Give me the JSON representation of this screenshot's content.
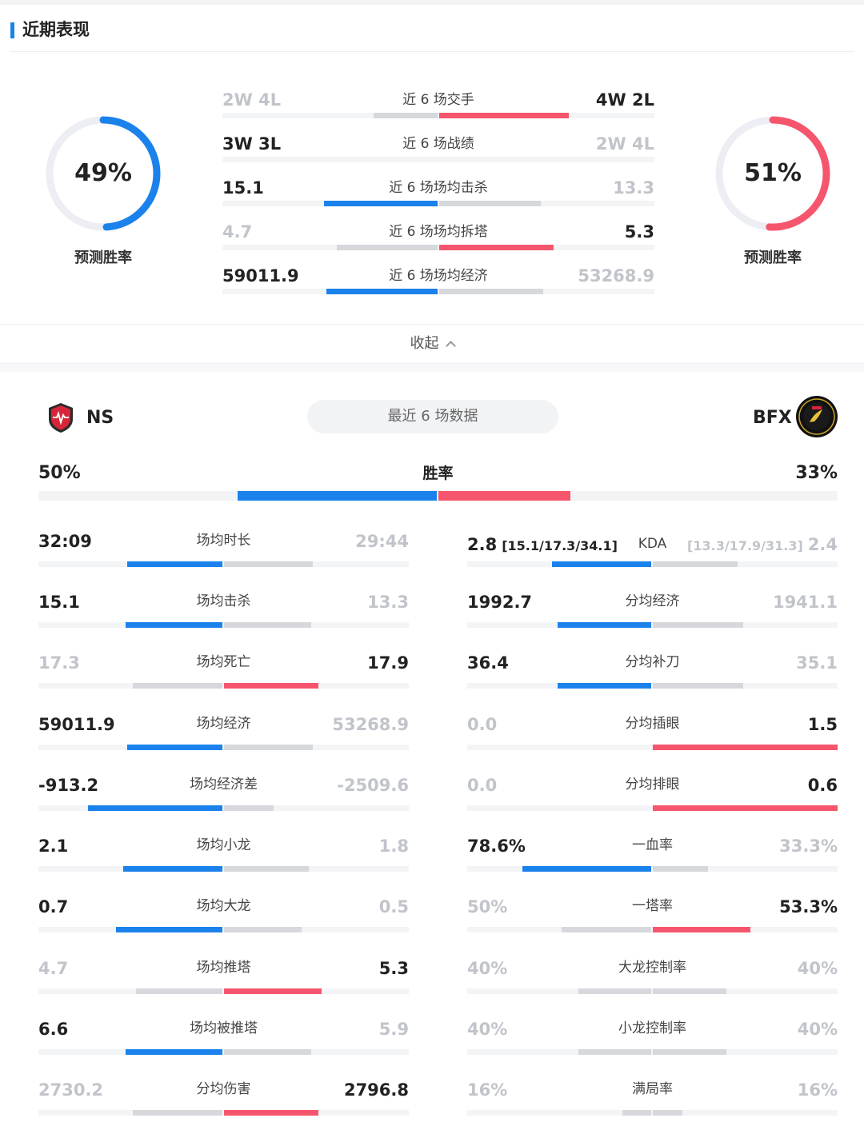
{
  "colors": {
    "blue": "#1b82ec",
    "red": "#f6566d",
    "gray": "#d6d8dc",
    "track": "#f3f4f6"
  },
  "section_title": "近期表现",
  "left_prediction": {
    "value": "49%",
    "caption": "预测胜率",
    "fraction": 0.49
  },
  "right_prediction": {
    "value": "51%",
    "caption": "预测胜率",
    "fraction": 0.51
  },
  "recent_matchups": [
    {
      "label": "近 6 场交手",
      "left": "2W 4L",
      "right": "4W 2L",
      "left_fill": 0.3,
      "right_fill": 0.6,
      "favored": "right"
    },
    {
      "label": "近 6 场战绩",
      "left": "3W 3L",
      "right": "2W 4L",
      "left_fill": 0,
      "right_fill": 0,
      "favored": "left"
    },
    {
      "label": "近 6 场场均击杀",
      "left": "15.1",
      "right": "13.3",
      "left_fill": 0.53,
      "right_fill": 0.47,
      "favored": "left"
    },
    {
      "label": "近 6 场场均拆塔",
      "left": "4.7",
      "right": "5.3",
      "left_fill": 0.47,
      "right_fill": 0.53,
      "favored": "right"
    },
    {
      "label": "近 6 场场均经济",
      "left": "59011.9",
      "right": "53268.9",
      "left_fill": 0.52,
      "right_fill": 0.48,
      "favored": "left"
    }
  ],
  "collapse_label": "收起",
  "teams": {
    "left": {
      "name": "NS",
      "logo": "ns-shield-logo"
    },
    "right": {
      "name": "BFX",
      "logo": "bfx-fearx-logo"
    }
  },
  "recent_games_label": "最近 6 场数据",
  "win_rate": {
    "label": "胜率",
    "left": "50%",
    "right": "33%",
    "left_fill": 0.5,
    "right_fill": 0.33
  },
  "left_stats": [
    {
      "label": "场均时长",
      "left": "32:09",
      "right": "29:44",
      "left_fill": 0.52,
      "right_fill": 0.48,
      "favored": "left"
    },
    {
      "label": "场均击杀",
      "left": "15.1",
      "right": "13.3",
      "left_fill": 0.53,
      "right_fill": 0.47,
      "favored": "left"
    },
    {
      "label": "场均死亡",
      "left": "17.3",
      "right": "17.9",
      "left_fill": 0.49,
      "right_fill": 0.51,
      "favored": "right"
    },
    {
      "label": "场均经济",
      "left": "59011.9",
      "right": "53268.9",
      "left_fill": 0.52,
      "right_fill": 0.48,
      "favored": "left"
    },
    {
      "label": "场均经济差",
      "left": "-913.2",
      "right": "-2509.6",
      "left_fill": 0.73,
      "right_fill": 0.27,
      "favored": "left"
    },
    {
      "label": "场均小龙",
      "left": "2.1",
      "right": "1.8",
      "left_fill": 0.54,
      "right_fill": 0.46,
      "favored": "left"
    },
    {
      "label": "场均大龙",
      "left": "0.7",
      "right": "0.5",
      "left_fill": 0.58,
      "right_fill": 0.42,
      "favored": "left"
    },
    {
      "label": "场均推塔",
      "left": "4.7",
      "right": "5.3",
      "left_fill": 0.47,
      "right_fill": 0.53,
      "favored": "right"
    },
    {
      "label": "场均被推塔",
      "left": "6.6",
      "right": "5.9",
      "left_fill": 0.53,
      "right_fill": 0.47,
      "favored": "left"
    },
    {
      "label": "分均伤害",
      "left": "2730.2",
      "right": "2796.8",
      "left_fill": 0.49,
      "right_fill": 0.51,
      "favored": "right"
    }
  ],
  "right_stats": [
    {
      "label": "KDA",
      "left": "2.8",
      "left_sub": "[15.1/17.3/34.1]",
      "right": "2.4",
      "right_sub": "[13.3/17.9/31.3]",
      "left_fill": 0.54,
      "right_fill": 0.46,
      "favored": "left"
    },
    {
      "label": "分均经济",
      "left": "1992.7",
      "right": "1941.1",
      "left_fill": 0.51,
      "right_fill": 0.49,
      "favored": "left"
    },
    {
      "label": "分均补刀",
      "left": "36.4",
      "right": "35.1",
      "left_fill": 0.51,
      "right_fill": 0.49,
      "favored": "left"
    },
    {
      "label": "分均插眼",
      "left": "0.0",
      "right": "1.5",
      "left_fill": 0,
      "right_fill": 1,
      "favored": "right"
    },
    {
      "label": "分均排眼",
      "left": "0.0",
      "right": "0.6",
      "left_fill": 0,
      "right_fill": 1,
      "favored": "right"
    },
    {
      "label": "一血率",
      "left": "78.6%",
      "right": "33.3%",
      "left_fill": 0.7,
      "right_fill": 0.3,
      "favored": "left"
    },
    {
      "label": "一塔率",
      "left": "50%",
      "right": "53.3%",
      "left_fill": 0.49,
      "right_fill": 0.53,
      "favored": "right"
    },
    {
      "label": "大龙控制率",
      "left": "40%",
      "right": "40%",
      "left_fill": 0.4,
      "right_fill": 0.4,
      "favored": "none"
    },
    {
      "label": "小龙控制率",
      "left": "40%",
      "right": "40%",
      "left_fill": 0.4,
      "right_fill": 0.4,
      "favored": "none"
    },
    {
      "label": "满局率",
      "left": "16%",
      "right": "16%",
      "left_fill": 0.16,
      "right_fill": 0.16,
      "favored": "none"
    }
  ]
}
